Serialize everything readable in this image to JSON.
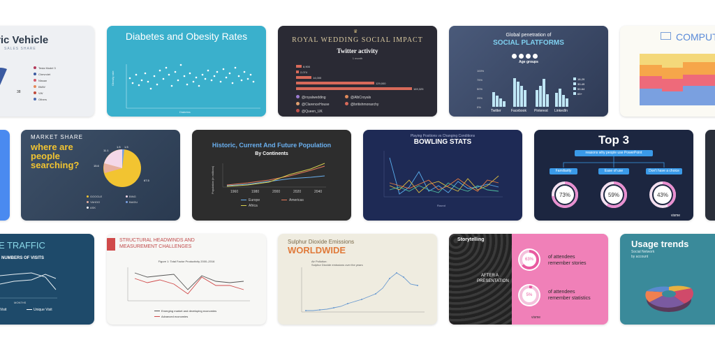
{
  "cards": {
    "electric_vehicle": {
      "title": "tric Vehicle",
      "subtitle": "SALES SHARE",
      "legend": [
        "Tesla Model 3",
        "Chevrolet",
        "Nissan",
        "BMW",
        "VW",
        "Others"
      ],
      "pct": "38"
    },
    "diabetes": {
      "title": "Diabetes and Obesity Rates",
      "ylabel": "Obesity rate",
      "xlabel": "Diabetes"
    },
    "royal_wedding": {
      "title": "ROYAL WEDDING SOCIAL IMPACT",
      "subtitle": "Twitter activity",
      "period": "1 month",
      "bar_labels": [
        "8,900",
        "2,074",
        "14,000",
        "129,000",
        "169,325"
      ],
      "handles": [
        "@royalwedding",
        "@AlbCroyals",
        "@ClarenceHouse",
        "@britishmonarchy",
        "@Queen_UK"
      ]
    },
    "social": {
      "title": "Global penetration of",
      "highlight": "SOCIAL PLATFORMS",
      "age": "Age groups",
      "platforms": [
        "Twitter",
        "Facebook",
        "Pinterest",
        "LinkedIn"
      ],
      "legend": [
        "18-29",
        "30-49",
        "50-64",
        "65+"
      ],
      "yticks": [
        "100%",
        "75%",
        "50%",
        "25%",
        "0%"
      ]
    },
    "computer": {
      "title": "COMPUTER"
    },
    "market_share": {
      "title": "MARKET SHARE",
      "headline_lines": [
        "where are",
        "people",
        "searching?"
      ],
      "values": [
        "67.5",
        "15.6",
        "11.1",
        "1.5",
        "1.5"
      ],
      "legend": [
        "GOOGLE",
        "BING",
        "YAHOO",
        "BAIDU",
        "ASK"
      ]
    },
    "population": {
      "title": "Historic, Current And Future Population",
      "subtitle": "By Continents",
      "ylabel": "Population (in millions)",
      "xticks": [
        "1960",
        "1980",
        "2000",
        "2020",
        "2040"
      ],
      "legend": [
        "Europe",
        "Americas",
        "Africa"
      ]
    },
    "bowling": {
      "kicker": "Playing Positions vs Changing Conditions",
      "title": "BOWLING STATS",
      "xlabel": "Round"
    },
    "top3": {
      "title": "Top 3",
      "subtitle": "reasons why people use PowerPoint",
      "reasons": [
        "Familiarity",
        "Ease of use",
        "Don't have a choice"
      ],
      "percents": [
        "73%",
        "59%",
        "43%"
      ],
      "footer": "visme"
    },
    "traffic": {
      "title": "TE TRAFFIC",
      "subtitle": "NUMBERS OF VISITS",
      "axis": "MONTHS",
      "legend": [
        "Visit",
        "Unique Visit"
      ]
    },
    "headwinds": {
      "title_lines": [
        "STRUCTURAL HEADWINDS AND",
        "MEASUREMENT CHALLENGES"
      ],
      "figure": "Figure 1: Total Factor Productivity 2000–2016",
      "legend": [
        "Emerging market and developing economies",
        "Advanced economies"
      ]
    },
    "sulphur": {
      "title": "Sulphur Dioxide Emissions",
      "highlight": "WORLDWIDE",
      "note_lines": [
        "Air Pollution:",
        "Sulphur Dioxide emissions over the years"
      ]
    },
    "storytelling": {
      "title": "Storytelling",
      "overlay_lines": [
        "AFTER A",
        "PRESENTATION"
      ],
      "stat1": "63%",
      "stat1_lines": [
        "of attendees",
        "remember stories"
      ],
      "stat2": "5%",
      "stat2_lines": [
        "of attendees",
        "remember statistics"
      ],
      "footer": "visme"
    },
    "usage": {
      "title": "Usage trends",
      "subtitle_lines": [
        "Social Network",
        "by account"
      ]
    }
  }
}
